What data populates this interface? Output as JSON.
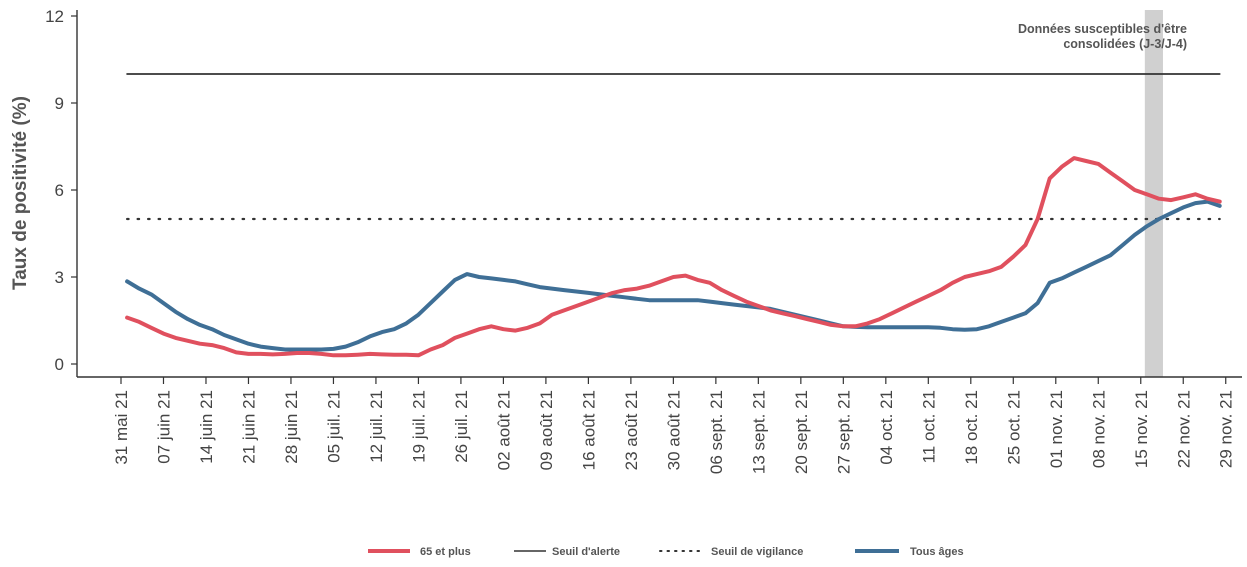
{
  "chart_data": {
    "type": "line",
    "title": "",
    "xlabel": "",
    "ylabel": "Taux de positivité (%)",
    "ylim": [
      0,
      12
    ],
    "yticks": [
      0,
      3,
      6,
      9,
      12
    ],
    "x_tick_labels": [
      "31 mai 21",
      "07 juin 21",
      "14 juin 21",
      "21 juin 21",
      "28 juin 21",
      "05 juil. 21",
      "12 juil. 21",
      "19 juil. 21",
      "26 juil. 21",
      "02 août 21",
      "09 août 21",
      "16 août 21",
      "23 août 21",
      "30 août 21",
      "06 sept. 21",
      "13 sept. 21",
      "20 sept. 21",
      "27 sept. 21",
      "04 oct. 21",
      "11 oct. 21",
      "18 oct. 21",
      "25 oct. 21",
      "01 nov. 21",
      "08 nov. 21",
      "15 nov. 21",
      "22 nov. 21",
      "29 nov. 21"
    ],
    "x_start_label": "31 mai 21",
    "annotation": {
      "line1": "Données susceptibles d'être",
      "line2": "consolidées (J-3/J-4)"
    },
    "shaded_region": {
      "from_day": 169,
      "to_day": 171
    },
    "series": [
      {
        "name": "65 et plus",
        "color": "#e0505e",
        "style": "solid",
        "points": [
          [
            1,
            1.6
          ],
          [
            3,
            1.45
          ],
          [
            5,
            1.25
          ],
          [
            7,
            1.05
          ],
          [
            9,
            0.9
          ],
          [
            11,
            0.8
          ],
          [
            13,
            0.7
          ],
          [
            15,
            0.65
          ],
          [
            17,
            0.55
          ],
          [
            19,
            0.4
          ],
          [
            21,
            0.35
          ],
          [
            23,
            0.35
          ],
          [
            25,
            0.33
          ],
          [
            27,
            0.35
          ],
          [
            29,
            0.38
          ],
          [
            31,
            0.38
          ],
          [
            33,
            0.35
          ],
          [
            35,
            0.3
          ],
          [
            37,
            0.3
          ],
          [
            39,
            0.32
          ],
          [
            41,
            0.35
          ],
          [
            43,
            0.33
          ],
          [
            45,
            0.32
          ],
          [
            47,
            0.32
          ],
          [
            49,
            0.3
          ],
          [
            51,
            0.5
          ],
          [
            53,
            0.65
          ],
          [
            55,
            0.9
          ],
          [
            57,
            1.05
          ],
          [
            59,
            1.2
          ],
          [
            61,
            1.3
          ],
          [
            63,
            1.2
          ],
          [
            65,
            1.15
          ],
          [
            67,
            1.25
          ],
          [
            69,
            1.4
          ],
          [
            71,
            1.7
          ],
          [
            73,
            1.85
          ],
          [
            75,
            2.0
          ],
          [
            77,
            2.15
          ],
          [
            79,
            2.3
          ],
          [
            81,
            2.45
          ],
          [
            83,
            2.55
          ],
          [
            85,
            2.6
          ],
          [
            87,
            2.7
          ],
          [
            89,
            2.85
          ],
          [
            91,
            3.0
          ],
          [
            93,
            3.05
          ],
          [
            95,
            2.9
          ],
          [
            97,
            2.8
          ],
          [
            99,
            2.55
          ],
          [
            101,
            2.35
          ],
          [
            103,
            2.15
          ],
          [
            105,
            2.0
          ],
          [
            107,
            1.85
          ],
          [
            109,
            1.75
          ],
          [
            111,
            1.65
          ],
          [
            113,
            1.55
          ],
          [
            115,
            1.45
          ],
          [
            117,
            1.35
          ],
          [
            119,
            1.3
          ],
          [
            121,
            1.3
          ],
          [
            123,
            1.4
          ],
          [
            125,
            1.55
          ],
          [
            127,
            1.75
          ],
          [
            129,
            1.95
          ],
          [
            131,
            2.15
          ],
          [
            133,
            2.35
          ],
          [
            135,
            2.55
          ],
          [
            137,
            2.8
          ],
          [
            139,
            3.0
          ],
          [
            141,
            3.1
          ],
          [
            143,
            3.2
          ],
          [
            145,
            3.35
          ],
          [
            147,
            3.7
          ],
          [
            149,
            4.1
          ],
          [
            151,
            5.0
          ],
          [
            153,
            6.4
          ],
          [
            155,
            6.8
          ],
          [
            157,
            7.1
          ],
          [
            159,
            7.0
          ],
          [
            161,
            6.9
          ],
          [
            163,
            6.6
          ],
          [
            165,
            6.3
          ],
          [
            167,
            6.0
          ],
          [
            169,
            5.85
          ],
          [
            171,
            5.7
          ],
          [
            173,
            5.65
          ],
          [
            175,
            5.75
          ],
          [
            177,
            5.85
          ],
          [
            179,
            5.7
          ],
          [
            181,
            5.6
          ]
        ]
      },
      {
        "name": "Seuil d'alerte",
        "color": "#333333",
        "style": "solid",
        "points": [
          [
            1,
            10
          ],
          [
            181,
            10
          ]
        ]
      },
      {
        "name": "Seuil de vigilance",
        "color": "#333333",
        "style": "dotted",
        "points": [
          [
            1,
            5
          ],
          [
            181,
            5
          ]
        ]
      },
      {
        "name": "Tous âges",
        "color": "#3f6f96",
        "style": "solid",
        "points": [
          [
            1,
            2.85
          ],
          [
            3,
            2.6
          ],
          [
            5,
            2.4
          ],
          [
            7,
            2.1
          ],
          [
            9,
            1.8
          ],
          [
            11,
            1.55
          ],
          [
            13,
            1.35
          ],
          [
            15,
            1.2
          ],
          [
            17,
            1.0
          ],
          [
            19,
            0.85
          ],
          [
            21,
            0.7
          ],
          [
            23,
            0.6
          ],
          [
            25,
            0.55
          ],
          [
            27,
            0.5
          ],
          [
            29,
            0.5
          ],
          [
            31,
            0.5
          ],
          [
            33,
            0.5
          ],
          [
            35,
            0.52
          ],
          [
            37,
            0.6
          ],
          [
            39,
            0.75
          ],
          [
            41,
            0.95
          ],
          [
            43,
            1.1
          ],
          [
            45,
            1.2
          ],
          [
            47,
            1.4
          ],
          [
            49,
            1.7
          ],
          [
            51,
            2.1
          ],
          [
            53,
            2.5
          ],
          [
            55,
            2.9
          ],
          [
            57,
            3.1
          ],
          [
            59,
            3.0
          ],
          [
            61,
            2.95
          ],
          [
            63,
            2.9
          ],
          [
            65,
            2.85
          ],
          [
            67,
            2.75
          ],
          [
            69,
            2.65
          ],
          [
            71,
            2.6
          ],
          [
            73,
            2.55
          ],
          [
            75,
            2.5
          ],
          [
            77,
            2.45
          ],
          [
            79,
            2.4
          ],
          [
            81,
            2.35
          ],
          [
            83,
            2.3
          ],
          [
            85,
            2.25
          ],
          [
            87,
            2.2
          ],
          [
            89,
            2.2
          ],
          [
            91,
            2.2
          ],
          [
            93,
            2.2
          ],
          [
            95,
            2.2
          ],
          [
            97,
            2.15
          ],
          [
            99,
            2.1
          ],
          [
            101,
            2.05
          ],
          [
            103,
            2.0
          ],
          [
            105,
            1.95
          ],
          [
            107,
            1.9
          ],
          [
            109,
            1.8
          ],
          [
            111,
            1.7
          ],
          [
            113,
            1.6
          ],
          [
            115,
            1.5
          ],
          [
            117,
            1.4
          ],
          [
            119,
            1.3
          ],
          [
            121,
            1.28
          ],
          [
            123,
            1.27
          ],
          [
            125,
            1.27
          ],
          [
            127,
            1.27
          ],
          [
            129,
            1.27
          ],
          [
            131,
            1.27
          ],
          [
            133,
            1.27
          ],
          [
            135,
            1.25
          ],
          [
            137,
            1.2
          ],
          [
            139,
            1.18
          ],
          [
            141,
            1.2
          ],
          [
            143,
            1.3
          ],
          [
            145,
            1.45
          ],
          [
            147,
            1.6
          ],
          [
            149,
            1.75
          ],
          [
            151,
            2.1
          ],
          [
            153,
            2.8
          ],
          [
            155,
            2.95
          ],
          [
            157,
            3.15
          ],
          [
            159,
            3.35
          ],
          [
            161,
            3.55
          ],
          [
            163,
            3.75
          ],
          [
            165,
            4.1
          ],
          [
            167,
            4.45
          ],
          [
            169,
            4.75
          ],
          [
            171,
            5.0
          ],
          [
            173,
            5.2
          ],
          [
            175,
            5.4
          ],
          [
            177,
            5.55
          ],
          [
            179,
            5.6
          ],
          [
            181,
            5.45
          ]
        ]
      }
    ],
    "legend": {
      "placement": "bottom",
      "entries": [
        "65 et plus",
        "Seuil d'alerte",
        "Seuil de vigilance",
        "Tous âges"
      ]
    }
  }
}
